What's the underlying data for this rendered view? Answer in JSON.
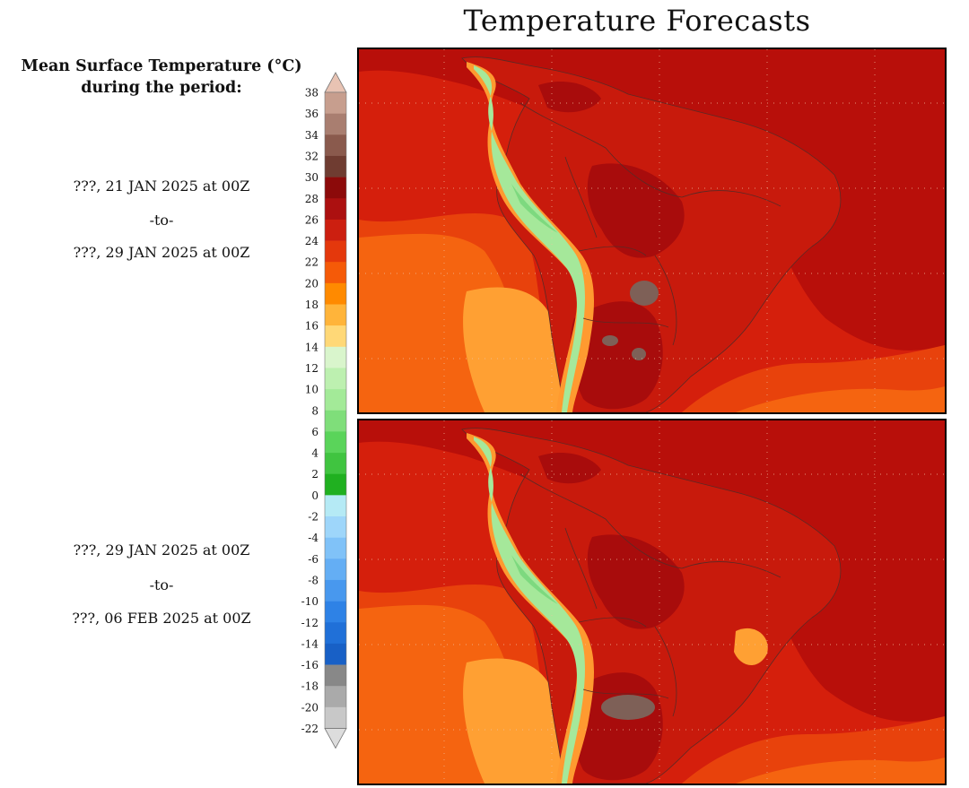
{
  "title": "Temperature Forecasts",
  "legend": {
    "title_line1": "Mean Surface Temperature (°C)",
    "title_line2": "during the period:",
    "ticks": [
      "38",
      "36",
      "34",
      "32",
      "30",
      "28",
      "26",
      "24",
      "22",
      "20",
      "18",
      "16",
      "14",
      "12",
      "10",
      "8",
      "6",
      "4",
      "2",
      "0",
      "-2",
      "-4",
      "-6",
      "-8",
      "-10",
      "-12",
      "-14",
      "-16",
      "-18",
      "-20",
      "-22"
    ],
    "colors": [
      "#e8c3b3",
      "#c79e8e",
      "#a97e70",
      "#8a5a4d",
      "#6f3c31",
      "#8c0a0a",
      "#ac1010",
      "#cc1f10",
      "#e4380c",
      "#f55a08",
      "#ff8a00",
      "#ffb43a",
      "#ffd877",
      "#d9f5cc",
      "#bdf0b0",
      "#a3ea98",
      "#7fde7a",
      "#5ad45a",
      "#40c440",
      "#20b020",
      "#b5eaf5",
      "#9ed6fa",
      "#80c2f8",
      "#64aef4",
      "#4898ee",
      "#2e82e6",
      "#2070d8",
      "#1860c6",
      "#888888",
      "#aaaaaa",
      "#c8c8c8",
      "#dddddd"
    ]
  },
  "periods": [
    {
      "from": "???, 21 JAN 2025 at 00Z",
      "sep": "-to-",
      "to": "???, 29 JAN 2025 at 00Z"
    },
    {
      "from": "???, 29 JAN 2025 at 00Z",
      "sep": "-to-",
      "to": "???, 06 FEB 2025 at 00Z"
    }
  ],
  "map_colors": {
    "ocean_warm": "#d51f0c",
    "ocean_hot": "#b80f0a",
    "ocean_mid": "#e8420c",
    "ocean_cool": "#f56410",
    "ocean_cold": "#ffa033",
    "land_hot": "#a80c0c",
    "land_warm": "#c81a0c",
    "andes_outer": "#ff9a30",
    "andes_green": "#a5e89a",
    "andes_peak": "#7dd97f",
    "dry_hot": "#7e6057",
    "border": "#5a2a26",
    "grid": "#f0c0a0"
  }
}
